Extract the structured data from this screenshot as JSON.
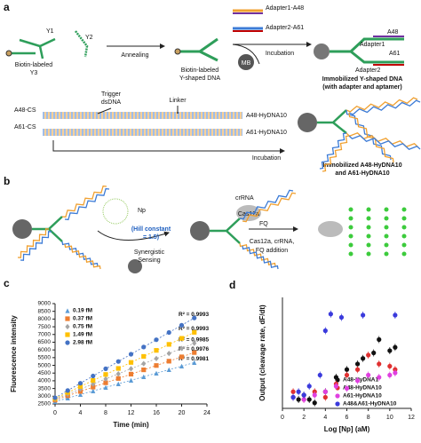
{
  "panel_labels": [
    "a",
    "b",
    "c",
    "d"
  ],
  "panel_a": {
    "y1": "Y1",
    "y2": "Y2",
    "biotin_y3": [
      "Biotin-labeled",
      "Y3"
    ],
    "annealing": "Annealing",
    "y_shaped": [
      "Biotin-labeled",
      "Y-shaped DNA"
    ],
    "adapter1_a48": "Adapter1-A48",
    "adapter2_a61": "Adapter2-A61",
    "mb": "MB",
    "incubation_1": "Incubation",
    "a48": "A48",
    "adapter1": "Adapter1",
    "a61": "A61",
    "adapter2": "Adapter2",
    "immobilized_y": [
      "Immobilized Y-shaped DNA",
      "(with adapter and aptamer)"
    ],
    "trigger": [
      "Trigger",
      "dsDNA"
    ],
    "linker": "Linker",
    "a48_cs": "A48-CS",
    "a61_cs": "A61-CS",
    "a48_hydna10": "A48-HyDNA10",
    "a61_hydna10": "A61-HyDNA10",
    "incubation_2": "Incubation",
    "immobilized_hydna": [
      "Immobilized A48-HyDNA10",
      "and A61-HyDNA10"
    ]
  },
  "panel_b": {
    "np": "Np",
    "hill": [
      "(Hill constant",
      "= 1.5)"
    ],
    "sensing": [
      "Synergistic",
      "Sensing"
    ],
    "crrna": "crRNA",
    "cas12a": "Cas12a",
    "fq": "FQ",
    "addition": [
      "Cas12a, crRNA,",
      "FQ addition"
    ]
  },
  "chart_data": [
    {
      "type": "scatter",
      "x_label": "Time (min)",
      "y_label": "Fluorescence intensity",
      "x": [
        0,
        2,
        4,
        6,
        8,
        10,
        12,
        14,
        16,
        18,
        20,
        22
      ],
      "xlim": [
        0,
        24
      ],
      "xticks": [
        0,
        4,
        8,
        12,
        16,
        20,
        24
      ],
      "ylim": [
        2500,
        9000
      ],
      "yticks": [
        2500,
        3000,
        3500,
        4000,
        4500,
        5000,
        5500,
        6000,
        6500,
        7000,
        7500,
        8000,
        8500,
        9000
      ],
      "fit_lines": true,
      "series": [
        {
          "name": "0.19 fM",
          "color": "#5b9bd5",
          "marker": "triangle",
          "r2_label": "R² = 0.9981",
          "values": [
            2650,
            2880,
            3110,
            3340,
            3570,
            3800,
            4030,
            4260,
            4490,
            4720,
            4950,
            5180
          ]
        },
        {
          "name": "0.37 fM",
          "color": "#ed7d31",
          "marker": "square",
          "r2_label": "R² = 0.9976",
          "values": [
            2750,
            3030,
            3310,
            3590,
            3870,
            4150,
            4430,
            4710,
            4990,
            5270,
            5550,
            5830
          ]
        },
        {
          "name": "0.75 fM",
          "color": "#a5a5a5",
          "marker": "diamond",
          "r2_label": "R² = 0.9985",
          "values": [
            2800,
            3130,
            3460,
            3790,
            4120,
            4450,
            4780,
            5110,
            5440,
            5770,
            6100,
            6430
          ]
        },
        {
          "name": "1.49 fM",
          "color": "#ffc000",
          "marker": "square",
          "r2_label": "R² = 0.9993",
          "values": [
            2850,
            3240,
            3630,
            4020,
            4410,
            4800,
            5190,
            5580,
            5970,
            6360,
            6750,
            7140
          ]
        },
        {
          "name": "2.98 fM",
          "color": "#4472c4",
          "marker": "circle",
          "r2_label": "R² = 0.9993",
          "values": [
            2900,
            3370,
            3840,
            4310,
            4780,
            5250,
            5720,
            6190,
            6660,
            7130,
            7600,
            8070
          ]
        }
      ]
    },
    {
      "type": "scatter",
      "x_label": "Log [Np] (aM)",
      "y_label": "Output (cleavage rate, dF/dt)",
      "xlim": [
        0,
        12
      ],
      "xticks": [
        0,
        2,
        4,
        6,
        8,
        10,
        12
      ],
      "ylim": [
        0,
        100
      ],
      "fit_lines": false,
      "series": [
        {
          "name": "A48-HyDNA1",
          "color": "#111111",
          "marker": "circle",
          "x": [
            1,
            1.5,
            2,
            2.5,
            3,
            4,
            5,
            6,
            7,
            7.5,
            8.5,
            9,
            10,
            10.5
          ],
          "values": [
            10,
            8,
            12,
            8,
            5,
            15,
            28,
            35,
            40,
            45,
            50,
            62,
            52,
            55
          ]
        },
        {
          "name": "A48-HyDNA10",
          "color": "#e03030",
          "marker": "circle",
          "x": [
            1,
            2,
            3,
            4,
            5,
            6,
            7,
            8,
            9,
            10,
            10.5
          ],
          "values": [
            15,
            8,
            15,
            10,
            22,
            30,
            35,
            48,
            40,
            38,
            35
          ]
        },
        {
          "name": "A61-HyDNA10",
          "color": "#e040e0",
          "marker": "circle",
          "x": [
            1,
            2,
            3,
            4,
            5,
            6,
            7,
            8,
            9,
            10,
            10.5
          ],
          "values": [
            10,
            8,
            12,
            15,
            20,
            18,
            25,
            30,
            28,
            30,
            32
          ]
        },
        {
          "name": "A48&A61-HyDNA10",
          "color": "#3a3adc",
          "marker": "circle",
          "x": [
            1,
            1.5,
            2,
            2.5,
            3.5,
            4,
            4.5,
            5.5,
            7.5,
            10.5
          ],
          "values": [
            10,
            15,
            12,
            20,
            30,
            70,
            85,
            82,
            84,
            84
          ]
        }
      ]
    }
  ]
}
